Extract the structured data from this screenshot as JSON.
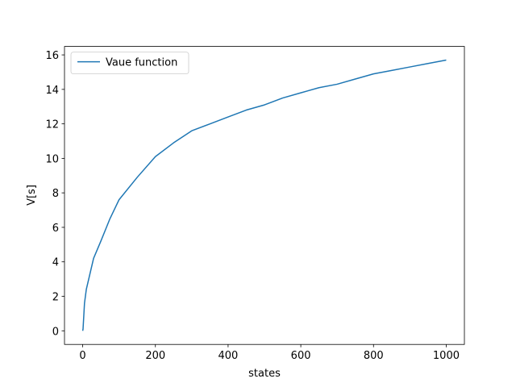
{
  "chart_data": {
    "type": "line",
    "xlabel": "states",
    "ylabel": "V[s]",
    "x": [
      0,
      1,
      5,
      10,
      20,
      30,
      50,
      75,
      100,
      150,
      200,
      250,
      300,
      350,
      400,
      450,
      500,
      550,
      600,
      650,
      700,
      750,
      800,
      850,
      900,
      950,
      1000
    ],
    "series": [
      {
        "name": "Vaue function",
        "color": "#1f77b4",
        "values": [
          0,
          0.1,
          1.6,
          2.4,
          3.3,
          4.2,
          5.2,
          6.5,
          7.6,
          8.9,
          10.1,
          10.9,
          11.6,
          12.0,
          12.4,
          12.8,
          13.1,
          13.5,
          13.8,
          14.1,
          14.3,
          14.6,
          14.9,
          15.1,
          15.3,
          15.5,
          15.7
        ]
      }
    ],
    "xlim": [
      -50,
      1050
    ],
    "xticks": [
      0,
      200,
      400,
      600,
      800,
      1000
    ],
    "ylim": [
      -0.79,
      16.49
    ],
    "yticks": [
      0,
      2,
      4,
      6,
      8,
      10,
      12,
      14,
      16
    ],
    "legend": "upper left",
    "grid": false
  }
}
